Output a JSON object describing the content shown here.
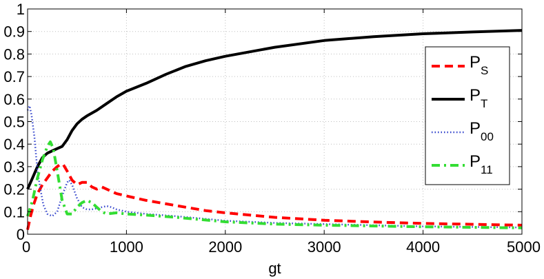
{
  "chart_data": {
    "type": "line",
    "xlabel": "gt",
    "ylabel": "",
    "xlim": [
      0,
      5000
    ],
    "ylim": [
      0,
      1
    ],
    "xticks": [
      "0",
      "1000",
      "2000",
      "3000",
      "4000",
      "5000"
    ],
    "yticks": [
      "0",
      "0.1",
      "0.2",
      "0.3",
      "0.4",
      "0.5",
      "0.6",
      "0.7",
      "0.8",
      "0.9",
      "1"
    ],
    "grid": true,
    "legend_position": "right",
    "series": [
      {
        "name": "P_S",
        "label_main": "P",
        "label_sub": "S",
        "color": "#ff0000",
        "style": "dashed",
        "points": [
          [
            0,
            0.02
          ],
          [
            30,
            0.08
          ],
          [
            60,
            0.13
          ],
          [
            100,
            0.18
          ],
          [
            150,
            0.22
          ],
          [
            200,
            0.25
          ],
          [
            250,
            0.28
          ],
          [
            300,
            0.3
          ],
          [
            330,
            0.31
          ],
          [
            360,
            0.31
          ],
          [
            400,
            0.28
          ],
          [
            450,
            0.24
          ],
          [
            500,
            0.22
          ],
          [
            550,
            0.23
          ],
          [
            600,
            0.23
          ],
          [
            650,
            0.21
          ],
          [
            700,
            0.2
          ],
          [
            750,
            0.21
          ],
          [
            800,
            0.2
          ],
          [
            850,
            0.19
          ],
          [
            900,
            0.18
          ],
          [
            1000,
            0.17
          ],
          [
            1100,
            0.16
          ],
          [
            1200,
            0.15
          ],
          [
            1400,
            0.135
          ],
          [
            1600,
            0.12
          ],
          [
            1800,
            0.105
          ],
          [
            2000,
            0.095
          ],
          [
            2500,
            0.075
          ],
          [
            3000,
            0.062
          ],
          [
            3500,
            0.054
          ],
          [
            4000,
            0.048
          ],
          [
            4500,
            0.044
          ],
          [
            5000,
            0.04
          ]
        ]
      },
      {
        "name": "P_T",
        "label_main": "P",
        "label_sub": "T",
        "color": "#000000",
        "style": "solid",
        "points": [
          [
            0,
            0.2
          ],
          [
            50,
            0.25
          ],
          [
            100,
            0.3
          ],
          [
            150,
            0.34
          ],
          [
            200,
            0.36
          ],
          [
            250,
            0.37
          ],
          [
            300,
            0.38
          ],
          [
            350,
            0.39
          ],
          [
            400,
            0.42
          ],
          [
            450,
            0.46
          ],
          [
            500,
            0.49
          ],
          [
            550,
            0.51
          ],
          [
            600,
            0.525
          ],
          [
            700,
            0.55
          ],
          [
            800,
            0.58
          ],
          [
            900,
            0.61
          ],
          [
            1000,
            0.635
          ],
          [
            1200,
            0.67
          ],
          [
            1400,
            0.71
          ],
          [
            1600,
            0.745
          ],
          [
            1800,
            0.77
          ],
          [
            2000,
            0.79
          ],
          [
            2500,
            0.83
          ],
          [
            3000,
            0.86
          ],
          [
            3500,
            0.877
          ],
          [
            4000,
            0.89
          ],
          [
            4500,
            0.898
          ],
          [
            5000,
            0.905
          ]
        ]
      },
      {
        "name": "P_00",
        "label_main": "P",
        "label_sub": "00",
        "color": "#3344cc",
        "style": "dotted",
        "points": [
          [
            0,
            0.55
          ],
          [
            20,
            0.57
          ],
          [
            40,
            0.53
          ],
          [
            70,
            0.43
          ],
          [
            100,
            0.28
          ],
          [
            130,
            0.2
          ],
          [
            160,
            0.13
          ],
          [
            200,
            0.09
          ],
          [
            250,
            0.08
          ],
          [
            300,
            0.1
          ],
          [
            350,
            0.17
          ],
          [
            400,
            0.23
          ],
          [
            420,
            0.24
          ],
          [
            450,
            0.22
          ],
          [
            500,
            0.16
          ],
          [
            550,
            0.12
          ],
          [
            600,
            0.11
          ],
          [
            650,
            0.11
          ],
          [
            700,
            0.115
          ],
          [
            750,
            0.12
          ],
          [
            800,
            0.125
          ],
          [
            850,
            0.12
          ],
          [
            900,
            0.11
          ],
          [
            1000,
            0.1
          ],
          [
            1200,
            0.09
          ],
          [
            1500,
            0.08
          ],
          [
            2000,
            0.06
          ],
          [
            2500,
            0.05
          ],
          [
            3000,
            0.045
          ],
          [
            4000,
            0.035
          ],
          [
            5000,
            0.03
          ]
        ]
      },
      {
        "name": "P_11",
        "label_main": "P",
        "label_sub": "11",
        "color": "#33dd33",
        "style": "dashdot",
        "points": [
          [
            0,
            0.08
          ],
          [
            50,
            0.15
          ],
          [
            100,
            0.25
          ],
          [
            150,
            0.33
          ],
          [
            200,
            0.39
          ],
          [
            230,
            0.41
          ],
          [
            260,
            0.38
          ],
          [
            300,
            0.28
          ],
          [
            350,
            0.15
          ],
          [
            400,
            0.09
          ],
          [
            450,
            0.09
          ],
          [
            500,
            0.12
          ],
          [
            550,
            0.14
          ],
          [
            600,
            0.15
          ],
          [
            650,
            0.14
          ],
          [
            700,
            0.12
          ],
          [
            750,
            0.1
          ],
          [
            800,
            0.09
          ],
          [
            900,
            0.095
          ],
          [
            1000,
            0.09
          ],
          [
            1200,
            0.085
          ],
          [
            1500,
            0.075
          ],
          [
            2000,
            0.055
          ],
          [
            2500,
            0.045
          ],
          [
            3000,
            0.04
          ],
          [
            4000,
            0.033
          ],
          [
            5000,
            0.028
          ]
        ]
      }
    ]
  }
}
